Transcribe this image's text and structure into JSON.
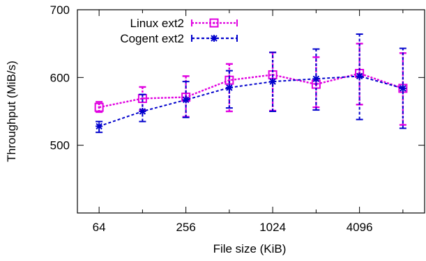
{
  "chart_data": {
    "type": "line",
    "title": "",
    "xlabel": "File size (KiB)",
    "ylabel": "Throughput (MiB/s)",
    "x_scale": "log2",
    "xlim": [
      45.25,
      11585
    ],
    "ylim": [
      400,
      700
    ],
    "x_ticks": [
      64,
      256,
      1024,
      4096
    ],
    "y_ticks": [
      500,
      600,
      700
    ],
    "grid": false,
    "legend_position": "top-left",
    "series": [
      {
        "name": "Linux ext2",
        "color": "#e000e0",
        "marker": "square",
        "x": [
          64,
          128,
          256,
          512,
          1024,
          2048,
          4096,
          8192
        ],
        "y": [
          556,
          569,
          571,
          596,
          604,
          590,
          606,
          584
        ],
        "err_low": [
          549,
          552,
          542,
          550,
          551,
          556,
          560,
          530
        ],
        "err_high": [
          564,
          586,
          602,
          620,
          637,
          630,
          650,
          636
        ]
      },
      {
        "name": "Cogent ext2",
        "color": "#0000cc",
        "marker": "asterisk",
        "x": [
          64,
          128,
          256,
          512,
          1024,
          2048,
          4096,
          8192
        ],
        "y": [
          528,
          550,
          567,
          585,
          594,
          598,
          602,
          584
        ],
        "err_low": [
          519,
          535,
          541,
          555,
          550,
          552,
          538,
          525
        ],
        "err_high": [
          535,
          575,
          594,
          610,
          637,
          642,
          664,
          643
        ]
      }
    ]
  }
}
